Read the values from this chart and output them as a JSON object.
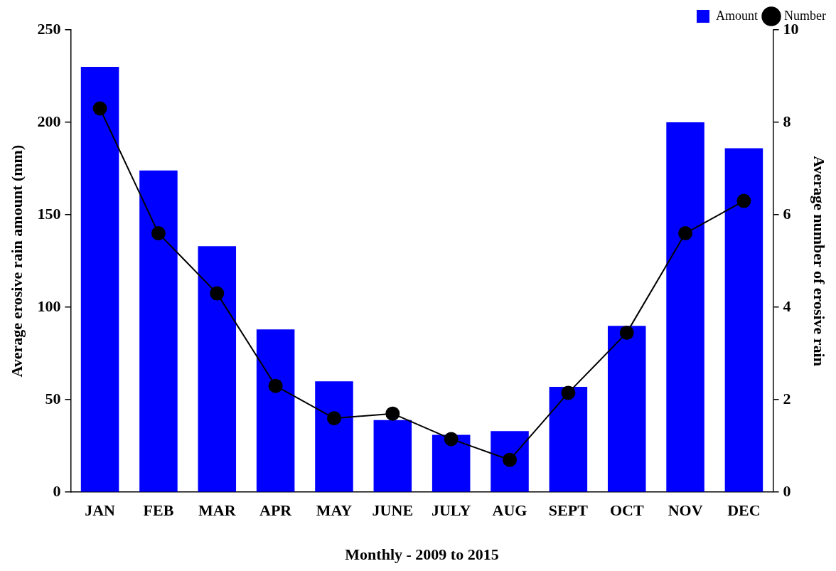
{
  "chart_data": {
    "type": "bar",
    "xlabel": "Monthly - 2009 to 2015",
    "ylabel": "Average erosive rain amount (mm)",
    "y2label": "Average number of erosive rain",
    "categories": [
      "JAN",
      "FEB",
      "MAR",
      "APR",
      "MAY",
      "JUNE",
      "JULY",
      "AUG",
      "SEPT",
      "OCT",
      "NOV",
      "DEC"
    ],
    "series": [
      {
        "name": "Amount",
        "color": "#0000ff",
        "values": [
          230,
          174,
          133,
          88,
          60,
          39,
          31,
          33,
          57,
          90,
          200,
          186
        ]
      },
      {
        "name": "Number",
        "type": "line",
        "axis": "y2",
        "color": "#000000",
        "marker": "circle",
        "line_style": "solid",
        "values": [
          8.3,
          5.6,
          4.3,
          2.3,
          1.6,
          1.7,
          1.15,
          0.7,
          2.15,
          3.45,
          5.6,
          6.3
        ]
      }
    ],
    "ylim": [
      0,
      250
    ],
    "yticks": [
      0,
      50,
      100,
      150,
      200,
      250
    ],
    "y2lim": [
      0,
      10
    ],
    "y2ticks": [
      0,
      2,
      4,
      6,
      8,
      10
    ],
    "grid": false,
    "legend": "top right"
  }
}
